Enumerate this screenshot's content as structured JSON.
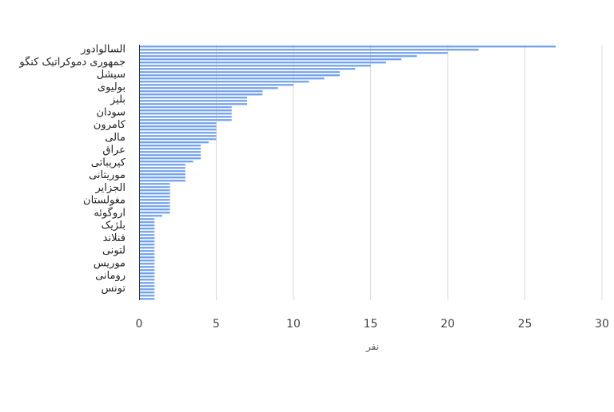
{
  "chart_data": {
    "type": "bar",
    "orientation": "horizontal",
    "xlabel": "نفر",
    "xlim": [
      0,
      30
    ],
    "xticks": [
      0,
      5,
      10,
      15,
      20,
      25,
      30
    ],
    "grid": "vertical",
    "labeled_categories": [
      "السالوادور",
      "جمهوری دموکراتیک کنگو",
      "سیشل",
      "بولیوی",
      "بلیز",
      "سودان",
      "کامرون",
      "مالی",
      "عراق",
      "کیریباتی",
      "موریتانی",
      "الجزایر",
      "مغولستان",
      "اروگوئه",
      "بلژیک",
      "فنلاند",
      "لتونی",
      "موریس",
      "رومانی",
      "تونس"
    ],
    "values": [
      27,
      22,
      20,
      18,
      17,
      16,
      15,
      14,
      13,
      13,
      12,
      11,
      10,
      9,
      8,
      8,
      7,
      7,
      7,
      6,
      6,
      6,
      6,
      6,
      5,
      5,
      5,
      5,
      5,
      5,
      4.5,
      4,
      4,
      4,
      4,
      4,
      3.5,
      3,
      3,
      3,
      3,
      3,
      3,
      2,
      2,
      2,
      2,
      2,
      2,
      2,
      2,
      2,
      2,
      1.5,
      1,
      1,
      1,
      1,
      1,
      1,
      1,
      1,
      1,
      1,
      1,
      1,
      1,
      1,
      1,
      1,
      1,
      1,
      1,
      1,
      1,
      1,
      1,
      1,
      1,
      1
    ],
    "colors": {
      "bar": "#6d9eeb",
      "grid": "#d9d9d9",
      "axis": "#333333"
    }
  }
}
